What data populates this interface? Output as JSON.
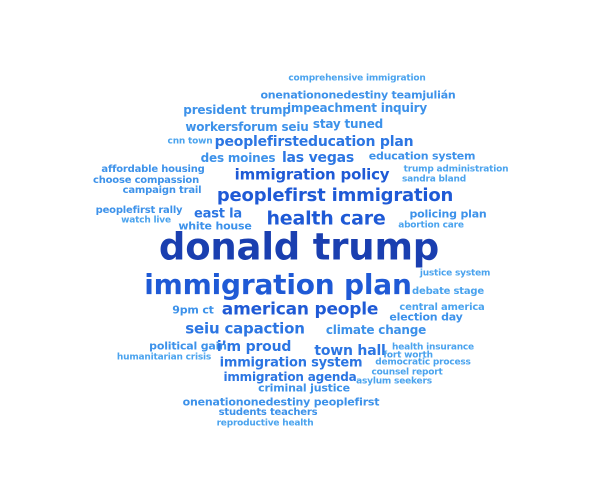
{
  "palette": {
    "darkest": "#1a3fb0",
    "dark": "#1f5ad6",
    "mid": "#2c76e3",
    "light": "#3d92ea",
    "lightest": "#4aa3ee"
  },
  "words": [
    {
      "text": "comprehensive immigration",
      "tone": "lightest"
    },
    {
      "text": "onenationonedestiny teamjulián",
      "tone": "light"
    },
    {
      "text": "president trump",
      "tone": "light"
    },
    {
      "text": "impeachment inquiry",
      "tone": "light"
    },
    {
      "text": "workersforum seiu",
      "tone": "light"
    },
    {
      "text": "stay tuned",
      "tone": "light"
    },
    {
      "text": "cnn town",
      "tone": "lightest"
    },
    {
      "text": "peoplefirsteducation plan",
      "tone": "mid"
    },
    {
      "text": "health insurance",
      "tone": "lightest"
    },
    {
      "text": "des moines",
      "tone": "light"
    },
    {
      "text": "las vegas",
      "tone": "mid"
    },
    {
      "text": "education system",
      "tone": "light"
    },
    {
      "text": "affordable housing",
      "tone": "light"
    },
    {
      "text": "immigration policy",
      "tone": "dark"
    },
    {
      "text": "trump administration",
      "tone": "lightest"
    },
    {
      "text": "choose compassion",
      "tone": "light"
    },
    {
      "text": "sandra bland",
      "tone": "lightest"
    },
    {
      "text": "campaign trail",
      "tone": "light"
    },
    {
      "text": "peoplefirst immigration",
      "tone": "dark"
    },
    {
      "text": "peoplefirst rally",
      "tone": "light"
    },
    {
      "text": "east la",
      "tone": "mid"
    },
    {
      "text": "health care",
      "tone": "dark"
    },
    {
      "text": "policing plan",
      "tone": "light"
    },
    {
      "text": "watch live",
      "tone": "lightest"
    },
    {
      "text": "white house",
      "tone": "light"
    },
    {
      "text": "abortion care",
      "tone": "lightest"
    },
    {
      "text": "donald trump",
      "tone": "darkest"
    },
    {
      "text": "immigration plan",
      "tone": "dark"
    },
    {
      "text": "justice system",
      "tone": "lightest"
    },
    {
      "text": "debate stage",
      "tone": "lightest"
    },
    {
      "text": "american people",
      "tone": "dark"
    },
    {
      "text": "9pm ct",
      "tone": "light"
    },
    {
      "text": "central america",
      "tone": "lightest"
    },
    {
      "text": "election day",
      "tone": "light"
    },
    {
      "text": "seiu capaction",
      "tone": "mid"
    },
    {
      "text": "climate change",
      "tone": "light"
    },
    {
      "text": "political gain",
      "tone": "light"
    },
    {
      "text": "i’m proud",
      "tone": "mid"
    },
    {
      "text": "town hall",
      "tone": "mid"
    },
    {
      "text": "fort worth",
      "tone": "lightest"
    },
    {
      "text": "humanitarian crisis",
      "tone": "lightest"
    },
    {
      "text": "immigration system",
      "tone": "mid"
    },
    {
      "text": "democratic process",
      "tone": "lightest"
    },
    {
      "text": "immigration agenda",
      "tone": "mid"
    },
    {
      "text": "counsel report",
      "tone": "lightest"
    },
    {
      "text": "criminal justice",
      "tone": "light"
    },
    {
      "text": "asylum seekers",
      "tone": "lightest"
    },
    {
      "text": "onenationonedestiny peoplefirst",
      "tone": "light"
    },
    {
      "text": "students teachers",
      "tone": "light"
    },
    {
      "text": "reproductive health",
      "tone": "lightest"
    }
  ]
}
